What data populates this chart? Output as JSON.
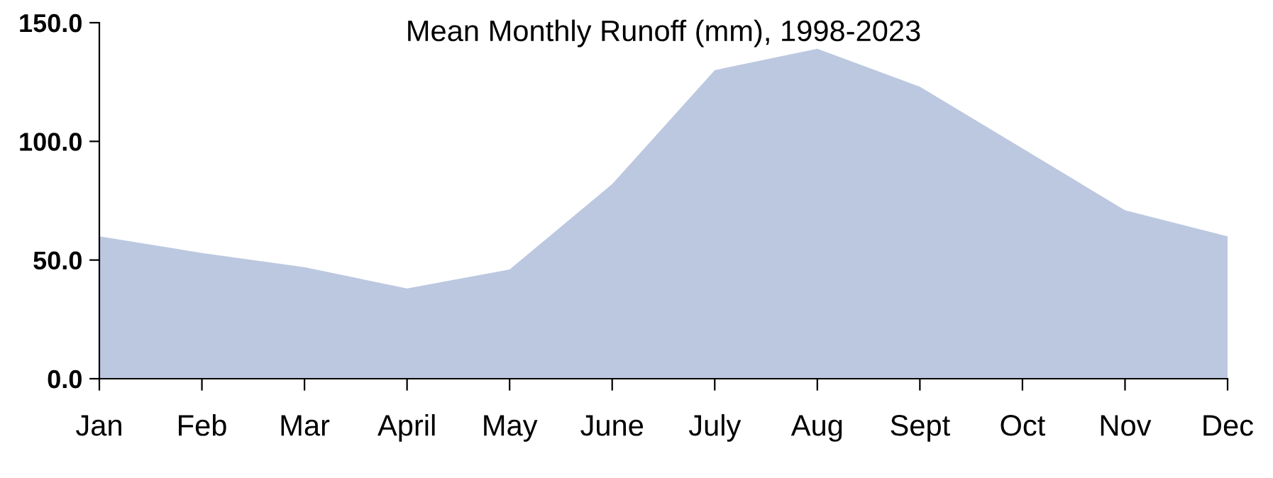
{
  "chart_data": {
    "type": "area",
    "title": "Mean Monthly Runoff (mm), 1998-2023",
    "categories": [
      "Jan",
      "Feb",
      "Mar",
      "April",
      "May",
      "June",
      "July",
      "Aug",
      "Sept",
      "Oct",
      "Nov",
      "Dec"
    ],
    "series": [
      {
        "color": "#bcc8e0",
        "values": [
          60,
          53,
          47,
          38,
          46,
          82,
          130,
          139,
          123,
          97,
          71,
          60
        ]
      }
    ],
    "ylim": [
      0,
      150
    ],
    "yticks": [
      {
        "value": 0,
        "label": "0.0"
      },
      {
        "value": 50,
        "label": "50.0"
      },
      {
        "value": 100,
        "label": "100.0"
      },
      {
        "value": 150,
        "label": "150.0"
      }
    ],
    "grid": false
  }
}
